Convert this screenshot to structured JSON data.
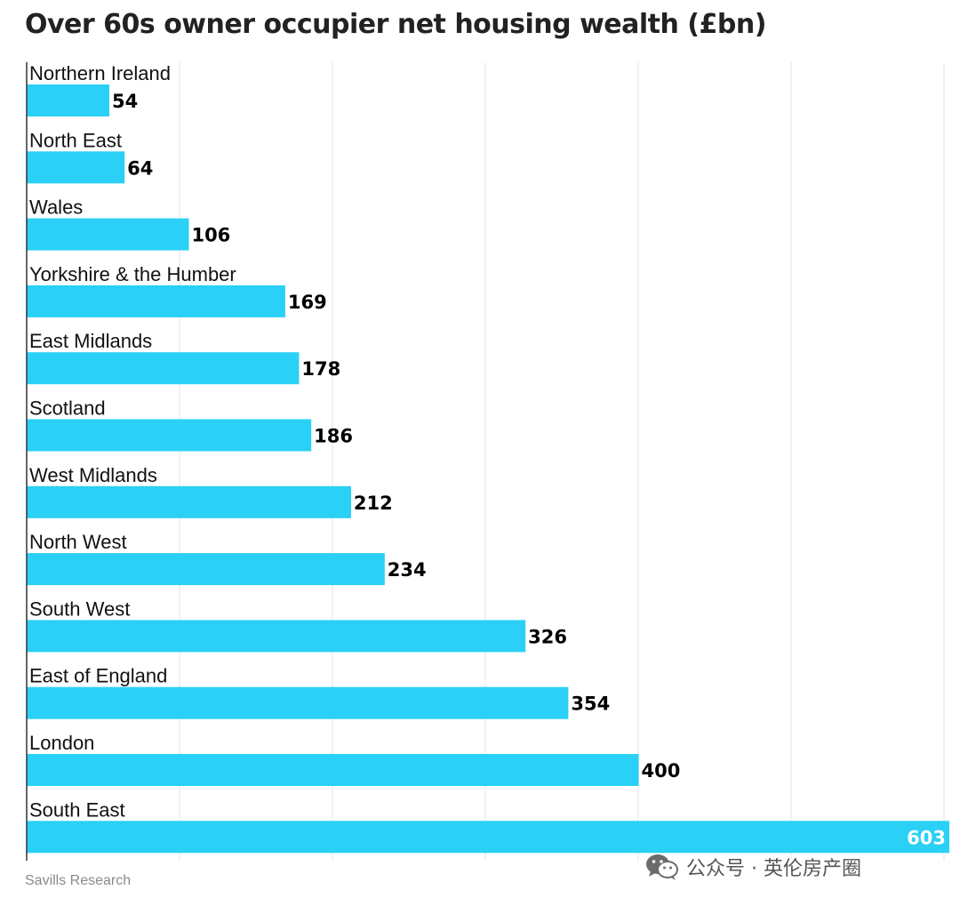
{
  "chart_data": {
    "type": "bar",
    "orientation": "horizontal",
    "title": "Over 60s owner occupier net housing wealth (£bn)",
    "categories": [
      "Northern Ireland",
      "North East",
      "Wales",
      "Yorkshire & the Humber",
      "East Midlands",
      "Scotland",
      "West Midlands",
      "North West",
      "South West",
      "East of England",
      "London",
      "South East"
    ],
    "values": [
      54,
      64,
      106,
      169,
      178,
      186,
      212,
      234,
      326,
      354,
      400,
      603
    ],
    "xlim": [
      0,
      603
    ],
    "grid": true,
    "bar_color": "#2ad0f5",
    "label_color": "#000000",
    "inside_label_color": "#ffffff"
  },
  "source": "Savills Research",
  "watermark": {
    "icon": "wechat-icon",
    "text": "公众号 · 英伦房产圈"
  }
}
